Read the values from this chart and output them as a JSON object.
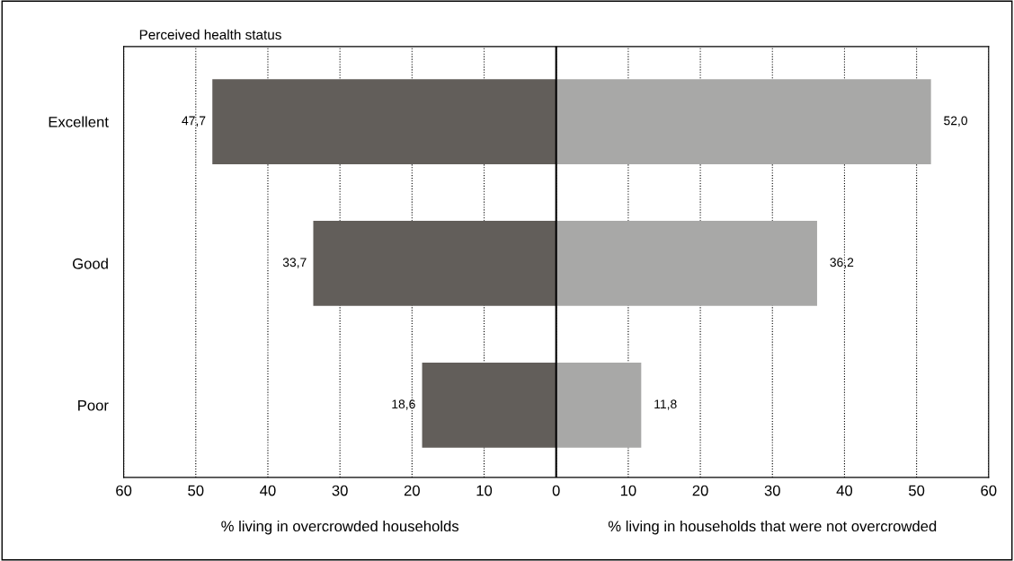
{
  "chart_data": {
    "type": "bar",
    "orientation": "horizontal",
    "ylabel": "Perceived health status",
    "categories": [
      "Excellent",
      "Good",
      "Poor"
    ],
    "series": [
      {
        "color": "#625e5a",
        "values": [
          47.7,
          33.7,
          18.6
        ],
        "base": [
          -47.7,
          -33.7,
          -18.6
        ],
        "value_labels": [
          "47,7",
          "33,7",
          "18,6"
        ]
      },
      {
        "color": "#a8a8a7",
        "values": [
          52.0,
          36.2,
          11.8
        ],
        "value_labels": [
          "52,0",
          "36,2",
          "11,8"
        ]
      }
    ],
    "xlim": [
      -60,
      60
    ],
    "xticks": [
      {
        "value": -60,
        "label": "60"
      },
      {
        "value": -50,
        "label": "50"
      },
      {
        "value": -40,
        "label": "40"
      },
      {
        "value": -30,
        "label": "30"
      },
      {
        "value": -20,
        "label": "20"
      },
      {
        "value": -10,
        "label": "10"
      },
      0,
      10,
      20,
      30,
      40,
      50,
      60
    ],
    "ref_lines": [
      {
        "axis": "x",
        "value": 0,
        "color": "#000000",
        "line_style": "solid"
      }
    ],
    "annotations": [
      "% living in overcrowded households",
      "% living in households that were not overcrowded"
    ],
    "grid": "x"
  }
}
